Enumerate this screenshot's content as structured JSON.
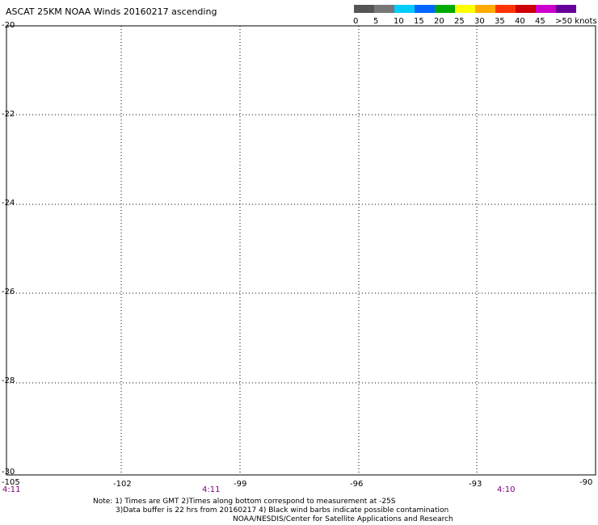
{
  "header": {
    "title": "ASCAT 25KM NOAA Winds 20160217 ascending",
    "legend_labels": [
      "0",
      "5",
      "10",
      "15",
      "20",
      "25",
      "30",
      "35",
      "40",
      "45",
      ">50 knots"
    ],
    "legend_colors": [
      "#555555",
      "#777777",
      "#00ccff",
      "#0066ff",
      "#00aa00",
      "#ffff00",
      "#ffaa00",
      "#ff3300",
      "#cc0000",
      "#cc00cc",
      "#660099"
    ]
  },
  "axes": {
    "lat_labels": [
      "-20",
      "-22",
      "-24",
      "-26",
      "-28",
      "-30"
    ],
    "lon_labels": [
      "-105",
      "-102",
      "-99",
      "-96",
      "-93",
      "-90"
    ]
  },
  "times": [
    "4:11",
    "4:11",
    "4:10"
  ],
  "notes": {
    "line1": "Note: 1) Times are GMT 2)Times along bottom correspond to measurement at -25S",
    "line2": "3)Data buffer is 22 hrs from 20160217 4) Black wind barbs indicate possible contamination",
    "line3": "NOAA/NESDIS/Center for Satellite Applications and Research"
  }
}
